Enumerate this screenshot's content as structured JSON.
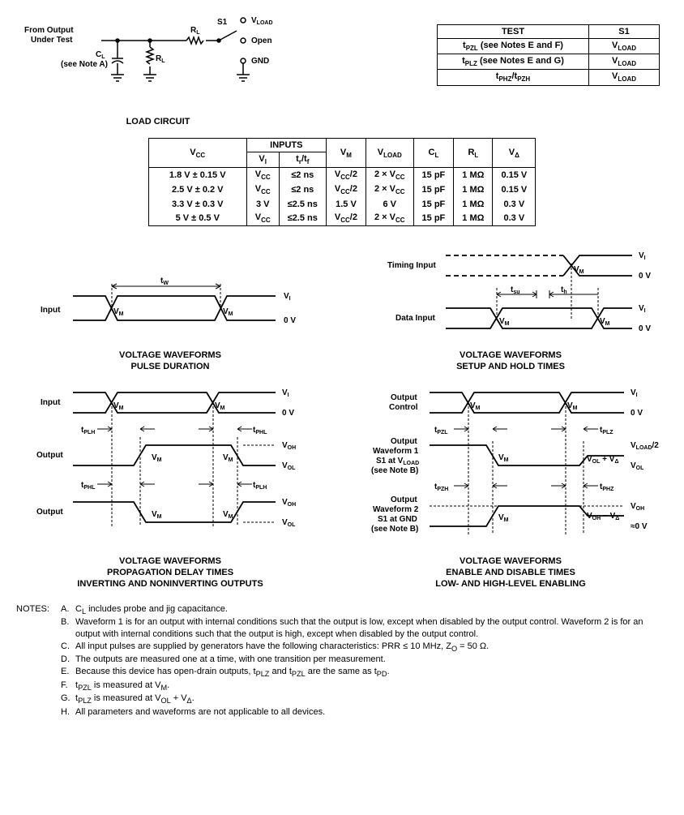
{
  "circuit": {
    "from_output": "From Output",
    "under_test": "Under Test",
    "cl": "C",
    "cl_sub": "L",
    "note_a": "(see Note A)",
    "rl": "R",
    "rl_sub": "L",
    "s1": "S1",
    "vload": "V",
    "vload_sub": "LOAD",
    "open": "Open",
    "gnd": "GND",
    "caption": "LOAD CIRCUIT"
  },
  "table1": {
    "h1": "TEST",
    "h2": "S1",
    "r1a": "t",
    "r1a_sub": "PZL",
    "r1b": " (see Notes E and F)",
    "r1c": "V",
    "r1c_sub": "LOAD",
    "r2a": "t",
    "r2a_sub": "PLZ",
    "r2b": " (see Notes E and G)",
    "r2c": "V",
    "r2c_sub": "LOAD",
    "r3a": "t",
    "r3a_sub": "PHZ",
    "r3m": "/t",
    "r3b_sub": "PZH",
    "r3c": "V",
    "r3c_sub": "LOAD"
  },
  "table2": {
    "h_vcc": "V",
    "h_vcc_sub": "CC",
    "h_inputs": "INPUTS",
    "h_vi": "V",
    "h_vi_sub": "I",
    "h_trtf": "t",
    "h_tr_sub": "r",
    "h_slash": "/t",
    "h_tf_sub": "f",
    "h_vm": "V",
    "h_vm_sub": "M",
    "h_vload": "V",
    "h_vload_sub": "LOAD",
    "h_cl": "C",
    "h_cl_sub": "L",
    "h_rl": "R",
    "h_rl_sub": "L",
    "h_vd": "V",
    "h_vd_sub": "Δ",
    "rows": [
      {
        "vcc": "1.8 V ± 0.15 V",
        "vi": "V",
        "vi_sub": "CC",
        "trtf": "≤2 ns",
        "vm": "V",
        "vm_sub": "CC",
        "vm_suffix": "/2",
        "vload": "2 × V",
        "vload_sub": "CC",
        "cl": "15 pF",
        "rl": "1 MΩ",
        "vd": "0.15 V"
      },
      {
        "vcc": "2.5 V ± 0.2 V",
        "vi": "V",
        "vi_sub": "CC",
        "trtf": "≤2 ns",
        "vm": "V",
        "vm_sub": "CC",
        "vm_suffix": "/2",
        "vload": "2 × V",
        "vload_sub": "CC",
        "cl": "15 pF",
        "rl": "1 MΩ",
        "vd": "0.15 V"
      },
      {
        "vcc": "3.3 V ± 0.3 V",
        "vi": "3 V",
        "vi_sub": "",
        "trtf": "≤2.5 ns",
        "vm": "1.5 V",
        "vm_sub": "",
        "vm_suffix": "",
        "vload": "6 V",
        "vload_sub": "",
        "cl": "15 pF",
        "rl": "1 MΩ",
        "vd": "0.3 V"
      },
      {
        "vcc": "5 V ± 0.5 V",
        "vi": "V",
        "vi_sub": "CC",
        "trtf": "≤2.5 ns",
        "vm": "V",
        "vm_sub": "CC",
        "vm_suffix": "/2",
        "vload": "2 × V",
        "vload_sub": "CC",
        "cl": "15 pF",
        "rl": "1 MΩ",
        "vd": "0.3 V"
      }
    ]
  },
  "wave1": {
    "input": "Input",
    "tw": "t",
    "tw_sub": "W",
    "vm": "V",
    "vm_sub": "M",
    "vi": "V",
    "vi_sub": "I",
    "zero": "0 V",
    "cap1": "VOLTAGE WAVEFORMS",
    "cap2": "PULSE DURATION"
  },
  "wave2": {
    "timing": "Timing Input",
    "data": "Data Input",
    "tsu": "t",
    "tsu_sub": "su",
    "th": "t",
    "th_sub": "h",
    "vm": "V",
    "vm_sub": "M",
    "vi": "V",
    "vi_sub": "I",
    "zero": "0 V",
    "cap1": "VOLTAGE WAVEFORMS",
    "cap2": "SETUP AND HOLD TIMES"
  },
  "wave3": {
    "input": "Input",
    "output": "Output",
    "tplh": "t",
    "tplh_sub": "PLH",
    "tphl": "t",
    "tphl_sub": "PHL",
    "vm": "V",
    "vm_sub": "M",
    "vi": "V",
    "vi_sub": "I",
    "zero": "0 V",
    "voh": "V",
    "voh_sub": "OH",
    "vol": "V",
    "vol_sub": "OL",
    "cap1": "VOLTAGE WAVEFORMS",
    "cap2": "PROPAGATION DELAY TIMES",
    "cap3": "INVERTING AND NONINVERTING OUTPUTS"
  },
  "wave4": {
    "outctl": "Output",
    "outctl2": "Control",
    "ow1a": "Output",
    "ow1b": "Waveform 1",
    "ow1c": "S1 at V",
    "ow1c_sub": "LOAD",
    "ow1d": "(see Note B)",
    "ow2a": "Output",
    "ow2b": "Waveform 2",
    "ow2c": "S1 at GND",
    "ow2d": "(see Note B)",
    "tpzl": "t",
    "tpzl_sub": "PZL",
    "tplz": "t",
    "tplz_sub": "PLZ",
    "tpzh": "t",
    "tpzh_sub": "PZH",
    "tphz": "t",
    "tphz_sub": "PHZ",
    "vm": "V",
    "vm_sub": "M",
    "vi": "V",
    "vi_sub": "I",
    "zero": "0 V",
    "vload2": "V",
    "vload2_sub": "LOAD",
    "vload_suffix": "/2",
    "volpvd": "V",
    "vol_sub": "OL",
    "plus": " + V",
    "vd_sub": "Δ",
    "vohmvd": "V",
    "voh_sub": "OH",
    "minus": " − V",
    "voh": "V",
    "vol": "V",
    "approx0": "≈0 V",
    "cap1": "VOLTAGE WAVEFORMS",
    "cap2": "ENABLE AND DISABLE TIMES",
    "cap3": "LOW- AND HIGH-LEVEL ENABLING"
  },
  "notes": {
    "tag": "NOTES:",
    "items": [
      {
        "l": "A.",
        "t": "C<sub>L</sub> includes probe and jig capacitance."
      },
      {
        "l": "B.",
        "t": "Waveform 1 is for an output with internal conditions such that the output is low, except when disabled by the output control. Waveform 2 is for an output with internal conditions such that the output is high, except when disabled by the output control."
      },
      {
        "l": "C.",
        "t": "All input pulses are supplied by generators have the following characteristics: PRR ≤ 10 MHz, Z<sub>O</sub> = 50 Ω."
      },
      {
        "l": "D.",
        "t": "The outputs are measured one at a time, with one transition per measurement."
      },
      {
        "l": "E.",
        "t": "Because this device has open-drain outputs, t<sub>PLZ</sub> and t<sub>PZL</sub> are the same as t<sub>PD</sub>."
      },
      {
        "l": "F.",
        "t": "t<sub>PZL</sub> is measured at V<sub>M</sub>."
      },
      {
        "l": "G.",
        "t": "t<sub>PLZ</sub> is measured at V<sub>OL</sub> + V<sub>Δ</sub>."
      },
      {
        "l": "H.",
        "t": "All parameters and waveforms are not applicable to all devices."
      }
    ]
  }
}
